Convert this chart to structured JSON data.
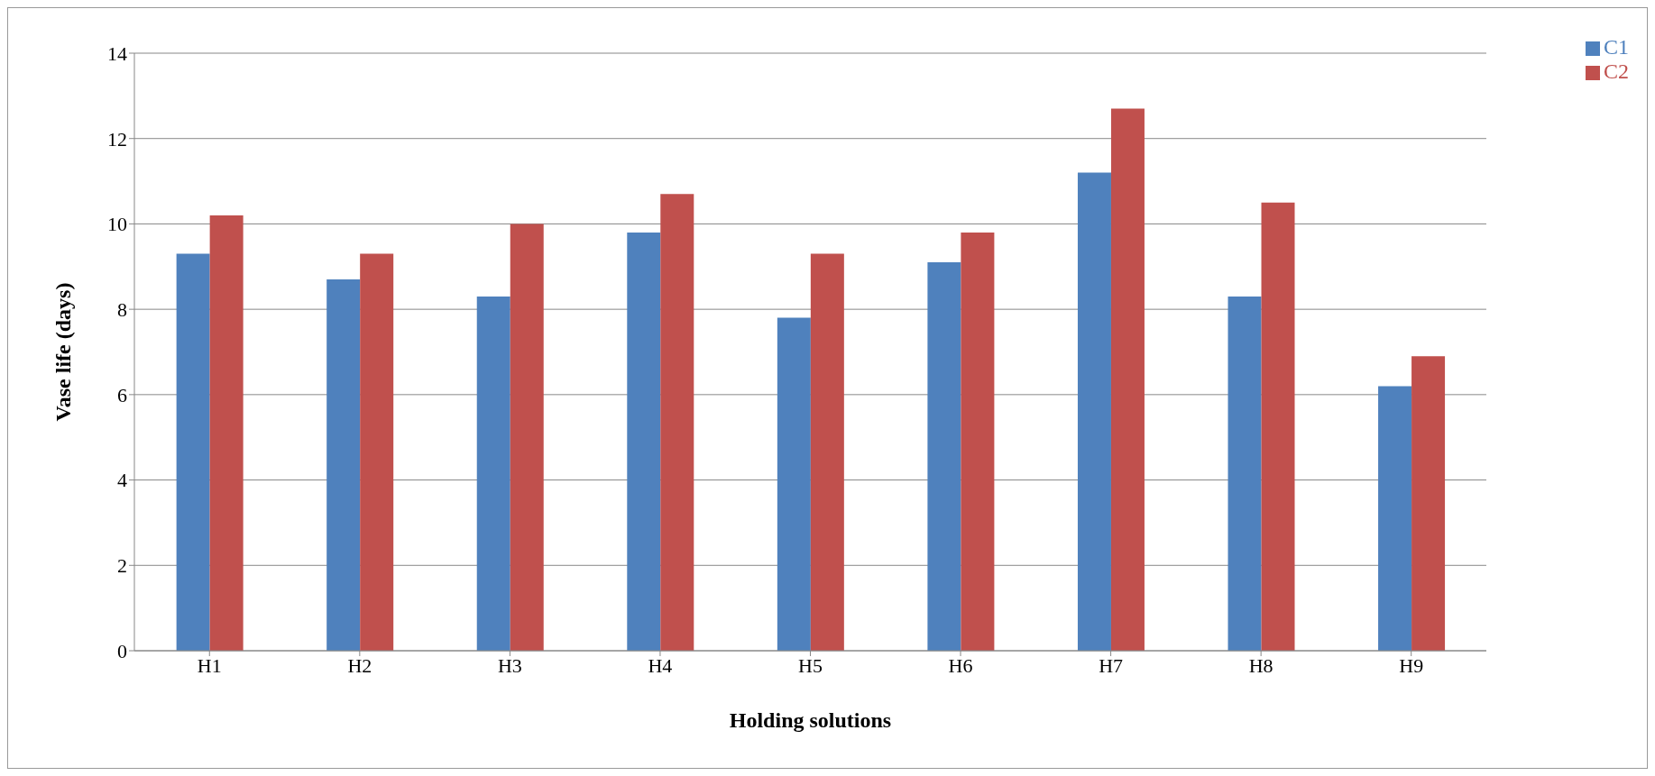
{
  "chart_data": {
    "type": "bar",
    "xlabel": "Holding solutions",
    "ylabel": "Vase life (days)",
    "categories": [
      "H1",
      "H2",
      "H3",
      "H4",
      "H5",
      "H6",
      "H7",
      "H8",
      "H9"
    ],
    "series": [
      {
        "name": "C1",
        "color": "#4f81bd",
        "values": [
          9.3,
          8.7,
          8.3,
          9.8,
          7.8,
          9.1,
          11.2,
          8.3,
          6.2
        ]
      },
      {
        "name": "C2",
        "color": "#c0504d",
        "values": [
          10.2,
          9.3,
          10.0,
          10.7,
          9.3,
          9.8,
          12.7,
          10.5,
          6.9
        ]
      }
    ],
    "ylim": [
      0,
      14
    ],
    "yticks": [
      0,
      2,
      4,
      6,
      8,
      10,
      12,
      14
    ],
    "grid": "y",
    "legend": "top right"
  }
}
